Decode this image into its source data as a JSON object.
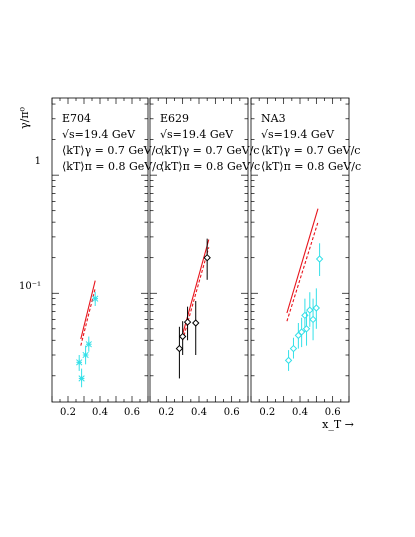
{
  "figure": {
    "y_axis_title": "γ/π⁰",
    "x_axis_title": "x_T →",
    "y_tick_labels": [
      "1",
      "10⁻¹"
    ],
    "x_tick_labels": [
      "0.2",
      "0.4",
      "0.6"
    ]
  },
  "colors": {
    "theory": "#e8141c",
    "data_cyan": "#33e0e8",
    "data_black": "#000000"
  },
  "chart_data": [
    {
      "type": "scatter",
      "title": "E704",
      "info_lines": [
        "√s=19.4 GeV",
        "⟨kT⟩γ = 0.7 GeV/c",
        "⟨kT⟩π = 0.8 GeV/c"
      ],
      "xlabel": "x_T →",
      "ylabel": "γ/π⁰",
      "xlim": [
        0.1,
        0.7
      ],
      "ylim": [
        0.012,
        4.5
      ],
      "yscale": "log",
      "x_ticks": [
        0.2,
        0.4,
        0.6
      ],
      "marker_color": "#33e0e8",
      "marker": "star",
      "points": [
        {
          "x": 0.27,
          "y": 0.026,
          "yerr": [
            0.004,
            0.004
          ]
        },
        {
          "x": 0.285,
          "y": 0.019,
          "yerr": [
            0.003,
            0.004
          ]
        },
        {
          "x": 0.31,
          "y": 0.03,
          "yerr": [
            0.005,
            0.006
          ]
        },
        {
          "x": 0.33,
          "y": 0.037,
          "yerr": [
            0.005,
            0.006
          ]
        },
        {
          "x": 0.37,
          "y": 0.09,
          "yerr": [
            0.012,
            0.013
          ]
        }
      ],
      "curves": [
        {
          "style": "solid",
          "points": [
            [
              0.28,
              0.041
            ],
            [
              0.37,
              0.128
            ]
          ]
        },
        {
          "style": "dashed",
          "points": [
            [
              0.28,
              0.036
            ],
            [
              0.37,
              0.11
            ]
          ]
        }
      ]
    },
    {
      "type": "scatter",
      "title": "E629",
      "info_lines": [
        "√s=19.4 GeV",
        "⟨kT⟩γ = 0.7 GeV/c",
        "⟨kT⟩π = 0.8 GeV/c"
      ],
      "xlabel": "x_T →",
      "ylabel": "γ/π⁰",
      "xlim": [
        0.1,
        0.7
      ],
      "ylim": [
        0.012,
        4.5
      ],
      "yscale": "log",
      "x_ticks": [
        0.2,
        0.4,
        0.6
      ],
      "marker_color": "#000000",
      "marker": "open-diamond",
      "points": [
        {
          "x": 0.28,
          "y": 0.034,
          "yerr": [
            0.015,
            0.018
          ]
        },
        {
          "x": 0.3,
          "y": 0.043,
          "yerr": [
            0.013,
            0.015
          ]
        },
        {
          "x": 0.33,
          "y": 0.057,
          "yerr": [
            0.017,
            0.02
          ]
        },
        {
          "x": 0.38,
          "y": 0.056,
          "yerr": [
            0.026,
            0.03
          ]
        },
        {
          "x": 0.45,
          "y": 0.2,
          "yerr": [
            0.07,
            0.09
          ]
        }
      ],
      "curves": [
        {
          "style": "solid",
          "points": [
            [
              0.3,
              0.045
            ],
            [
              0.46,
              0.285
            ]
          ]
        },
        {
          "style": "dashed",
          "points": [
            [
              0.3,
              0.04
            ],
            [
              0.46,
              0.245
            ]
          ]
        }
      ]
    },
    {
      "type": "scatter",
      "title": "NA3",
      "info_lines": [
        "√s=19.4 GeV",
        "⟨kT⟩γ = 0.7 GeV/c",
        "⟨kT⟩π = 0.8 GeV/c"
      ],
      "xlabel": "x_T →",
      "ylabel": "γ/π⁰",
      "xlim": [
        0.1,
        0.7
      ],
      "ylim": [
        0.012,
        4.5
      ],
      "yscale": "log",
      "x_ticks": [
        0.2,
        0.4,
        0.6
      ],
      "marker_color": "#33e0e8",
      "marker": "open-diamond",
      "points": [
        {
          "x": 0.33,
          "y": 0.027,
          "yerr": [
            0.005,
            0.006
          ]
        },
        {
          "x": 0.36,
          "y": 0.034,
          "yerr": [
            0.006,
            0.008
          ]
        },
        {
          "x": 0.39,
          "y": 0.044,
          "yerr": [
            0.01,
            0.012
          ]
        },
        {
          "x": 0.41,
          "y": 0.047,
          "yerr": [
            0.012,
            0.015
          ]
        },
        {
          "x": 0.43,
          "y": 0.065,
          "yerr": [
            0.018,
            0.025
          ]
        },
        {
          "x": 0.44,
          "y": 0.05,
          "yerr": [
            0.014,
            0.02
          ]
        },
        {
          "x": 0.46,
          "y": 0.072,
          "yerr": [
            0.02,
            0.03
          ]
        },
        {
          "x": 0.48,
          "y": 0.06,
          "yerr": [
            0.02,
            0.03
          ]
        },
        {
          "x": 0.5,
          "y": 0.075,
          "yerr": [
            0.025,
            0.035
          ]
        },
        {
          "x": 0.52,
          "y": 0.195,
          "yerr": [
            0.055,
            0.07
          ]
        }
      ],
      "curves": [
        {
          "style": "solid",
          "points": [
            [
              0.32,
              0.068
            ],
            [
              0.51,
              0.52
            ]
          ]
        },
        {
          "style": "dashed",
          "points": [
            [
              0.32,
              0.058
            ],
            [
              0.51,
              0.4
            ]
          ]
        }
      ]
    }
  ]
}
